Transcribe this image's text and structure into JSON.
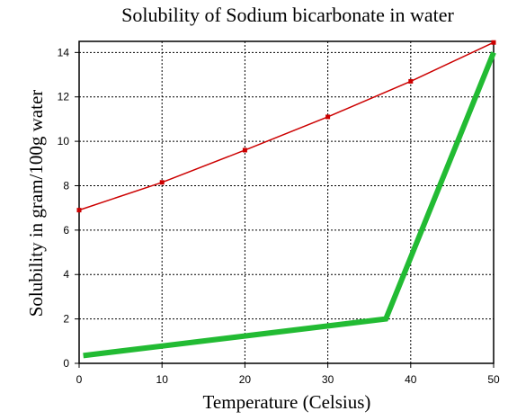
{
  "chart_data": {
    "type": "line",
    "title": "Solubility of Sodium bicarbonate in water",
    "xlabel": "Temperature (Celsius)",
    "ylabel": "Solubility in gram/100g water",
    "xlim": [
      0,
      50
    ],
    "ylim": [
      0,
      14.5
    ],
    "x_ticks": [
      0,
      10,
      20,
      30,
      40,
      50
    ],
    "y_ticks": [
      0,
      2,
      4,
      6,
      8,
      10,
      12,
      14
    ],
    "grid": true,
    "series": [
      {
        "color": "#cc0000",
        "markers": true,
        "x": [
          0,
          10,
          20,
          30,
          40,
          50
        ],
        "y": [
          6.9,
          8.15,
          9.6,
          11.1,
          12.7,
          14.45
        ]
      },
      {
        "color": "#22bb33",
        "markers": false,
        "x": [
          0.5,
          37,
          50
        ],
        "y": [
          0.35,
          2.0,
          14.0
        ]
      }
    ]
  }
}
